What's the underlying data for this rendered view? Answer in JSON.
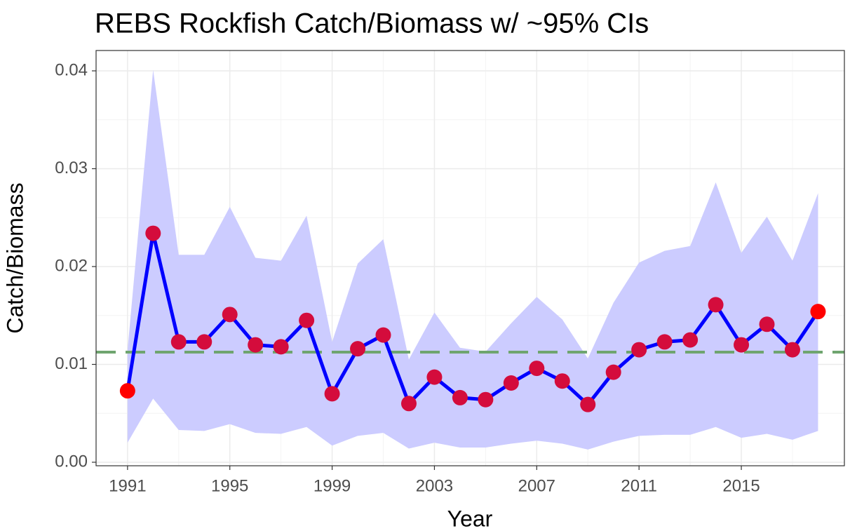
{
  "chart_data": {
    "type": "line",
    "title": "REBS Rockfish Catch/Biomass w/ ~95% CIs",
    "x_label": "Year",
    "y_label": "Catch/Biomass",
    "x": [
      1991,
      1992,
      1993,
      1994,
      1995,
      1996,
      1997,
      1998,
      1999,
      2000,
      2001,
      2002,
      2003,
      2004,
      2005,
      2006,
      2007,
      2008,
      2009,
      2010,
      2011,
      2012,
      2013,
      2014,
      2015,
      2016,
      2017,
      2018
    ],
    "series": [
      {
        "color": "#0000ff",
        "marker_color": "#d40c3c",
        "end_marker_color": "#ff0000",
        "values": [
          0.0073,
          0.0234,
          0.0123,
          0.0123,
          0.0151,
          0.012,
          0.0118,
          0.0145,
          0.007,
          0.0116,
          0.013,
          0.006,
          0.0087,
          0.0066,
          0.0064,
          0.0081,
          0.0096,
          0.0083,
          0.0059,
          0.0092,
          0.0115,
          0.0123,
          0.0125,
          0.0161,
          0.012,
          0.0141,
          0.0115,
          0.0154
        ]
      }
    ],
    "ci_upper": [
      0.0115,
      0.0401,
      0.0212,
      0.0212,
      0.0261,
      0.0209,
      0.0206,
      0.0252,
      0.0123,
      0.0203,
      0.0228,
      0.0105,
      0.0153,
      0.0117,
      0.0113,
      0.0142,
      0.0169,
      0.0146,
      0.0106,
      0.0163,
      0.0204,
      0.0216,
      0.0221,
      0.0286,
      0.0214,
      0.0251,
      0.0206,
      0.0275
    ],
    "ci_lower": [
      0.002,
      0.0065,
      0.0033,
      0.0032,
      0.0039,
      0.003,
      0.0029,
      0.0036,
      0.0017,
      0.0027,
      0.003,
      0.0014,
      0.002,
      0.0015,
      0.0015,
      0.0019,
      0.0022,
      0.0019,
      0.0013,
      0.0021,
      0.0027,
      0.0028,
      0.0028,
      0.0036,
      0.0025,
      0.0029,
      0.0023,
      0.0032
    ],
    "ci_color": "#ccccff",
    "reference_line": 0.01125,
    "reference_color": "#6fa56f",
    "xlim": [
      1989.77,
      2019.03
    ],
    "ylim": [
      -0.00036,
      0.04208
    ],
    "xticks": [
      1991,
      1995,
      1999,
      2003,
      2007,
      2011,
      2015
    ],
    "yticks": [
      {
        "value": 0,
        "label": "0.00"
      },
      0.01,
      0.02,
      0.03,
      0.04
    ],
    "x_minor_ticks": [
      1989,
      1993,
      1997,
      2001,
      2005,
      2009,
      2013,
      2017
    ],
    "y_minor_ticks": [
      0.005,
      0.015,
      0.025,
      0.035
    ],
    "grid": true
  }
}
